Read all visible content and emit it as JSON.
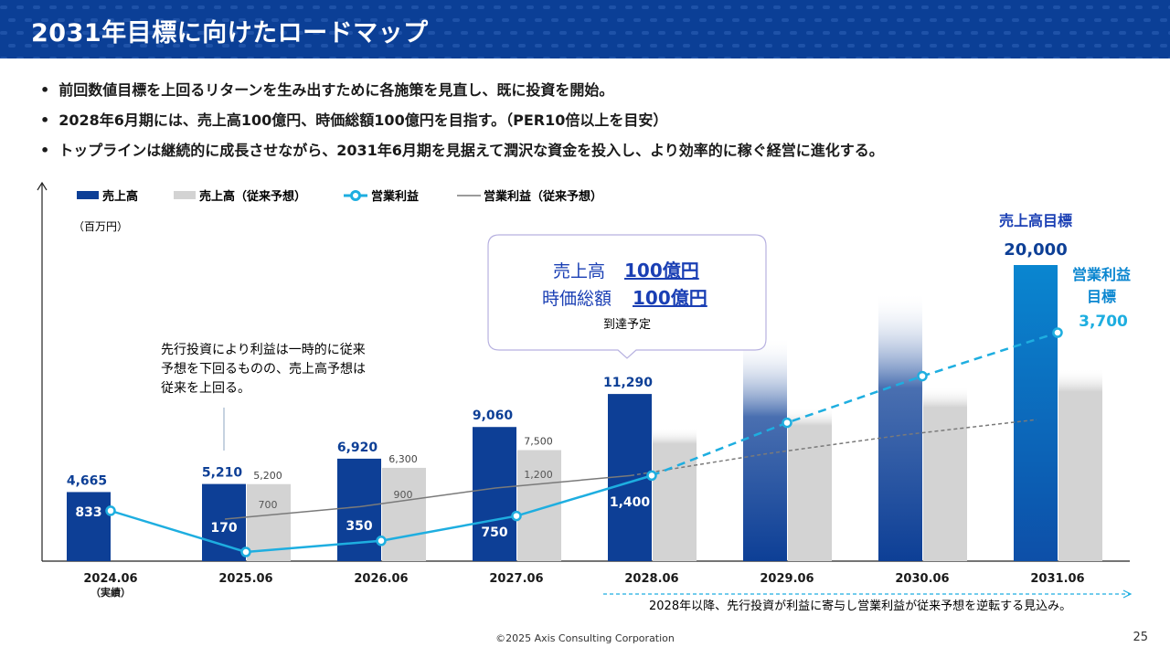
{
  "title": "2031年目標に向けたロードマップ",
  "bullets": [
    "前回数値目標を上回るリターンを生み出すために各施策を見直し、既に投資を開始。",
    "2028年6月期には、売上高100億円、時価総額100億円を目指す。（PER10倍以上を目安）",
    "トップラインは継続的に成長させながら、2031年6月期を見据えて潤沢な資金を投入し、より効率的に稼ぐ経営に進化する。"
  ],
  "callout": {
    "sales_label": "売上高",
    "sales_value": "100億円",
    "mcap_label": "時価総額",
    "mcap_value": "100億円",
    "note": "到達予定"
  },
  "annotation": [
    "先行投資により利益は一時的に従来",
    "予想を下回るものの、売上高予想は",
    "従来を上回る。"
  ],
  "target_sales_label": "売上高目標",
  "target_op_label": [
    "営業利益",
    "目標"
  ],
  "bottom_note": "2028年以降、先行投資が利益に寄与し営業利益が従来予想を逆転する見込み。",
  "copyright": "©2025 Axis Consulting Corporation",
  "page_number": "25",
  "colors": {
    "header": "#0b3f96",
    "sales": "#0d3f96",
    "prev_sales": "#d3d3d3",
    "op_profit": "#1eaee0",
    "prev_op": "#7a7a7a",
    "target_sales_bar": "#0a86d0",
    "link": "#1a3fb4"
  },
  "chart_data": {
    "type": "bar",
    "unit": "（百万円）",
    "categories": [
      "2024.06",
      "2025.06",
      "2026.06",
      "2027.06",
      "2028.06",
      "2029.06",
      "2030.06",
      "2031.06"
    ],
    "category_sublabels": [
      "（実績）",
      "",
      "",
      "",
      "",
      "",
      "",
      ""
    ],
    "legend": [
      "売上高",
      "売上高（従来予想）",
      "営業利益",
      "営業利益（従来予想）"
    ],
    "series": [
      {
        "name": "売上高",
        "type": "bar",
        "values": [
          4665,
          5210,
          6920,
          9060,
          11290,
          15000,
          18000,
          20000
        ],
        "labels": [
          "4,665",
          "5,210",
          "6,920",
          "9,060",
          "11,290",
          "",
          "",
          "20,000"
        ]
      },
      {
        "name": "売上高（従来予想）",
        "type": "bar",
        "values": [
          null,
          5200,
          6300,
          7500,
          9000,
          10400,
          11800,
          13000
        ],
        "labels": [
          "",
          "5,200",
          "6,300",
          "7,500",
          "",
          "",
          "",
          ""
        ]
      },
      {
        "name": "営業利益",
        "type": "line",
        "values": [
          833,
          170,
          350,
          750,
          1400,
          2250,
          3000,
          3700
        ],
        "labels": [
          "833",
          "170",
          "350",
          "750",
          "1,400",
          "",
          "",
          "3,700"
        ]
      },
      {
        "name": "営業利益（従来予想）",
        "type": "line",
        "values": [
          null,
          700,
          900,
          1200,
          1400,
          1750,
          2050,
          2300
        ],
        "labels": [
          "",
          "700",
          "900",
          "1,200",
          "",
          "",
          "",
          ""
        ]
      }
    ]
  }
}
